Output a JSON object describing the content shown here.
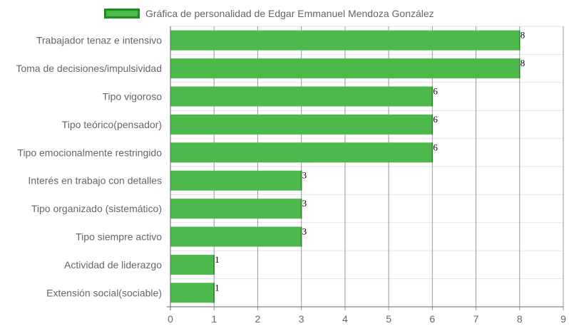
{
  "chart_data": {
    "type": "bar",
    "orientation": "horizontal",
    "categories": [
      "Trabajador tenaz e intensivo",
      "Toma de decisiones/impulsividad",
      "Tipo vigoroso",
      "Tipo teórico(pensador)",
      "Tipo emocionalmente restringido",
      "Interés en trabajo con detalles",
      "Tipo organizado (sistemático)",
      "Tipo siempre activo",
      "Actividad de liderazgo",
      "Extensión social(sociable)"
    ],
    "series": [
      {
        "name": "Gráfica de personalidad de Edgar Emmanuel Mendoza González",
        "values": [
          8,
          8,
          6,
          6,
          6,
          3,
          3,
          3,
          1,
          1
        ]
      }
    ],
    "xlim": [
      0,
      9
    ],
    "xticks": [
      "0",
      "1",
      "2",
      "3",
      "4",
      "5",
      "6",
      "7",
      "8",
      "9"
    ],
    "grid": true,
    "legend_position": "top",
    "data_labels": true,
    "colors": {
      "bar_fill": "#4db84b",
      "bar_border": "#1e8c1e",
      "grid": "#e5e5e5",
      "grid_major": "#999999"
    }
  }
}
